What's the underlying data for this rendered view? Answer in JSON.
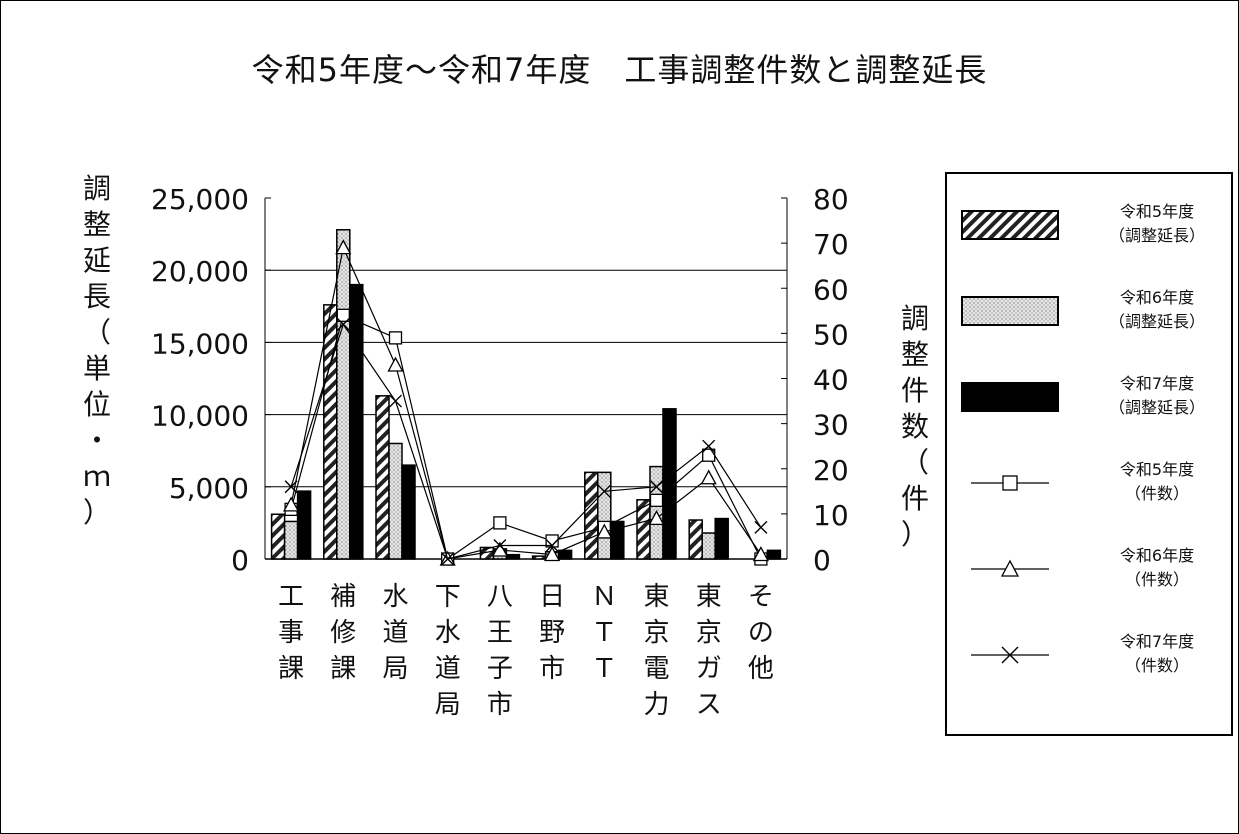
{
  "chart_data": {
    "type": "bar",
    "title": "令和5年度～令和7年度　工事調整件数と調整延長",
    "ylabel_left": "調整延長（単位・ｍ）",
    "ylabel_right": "調整件数（件）",
    "categories": [
      "工事課",
      "補修課",
      "水道局",
      "下水道局",
      "八王子市",
      "日野市",
      "ＮＴＴ",
      "東京電力",
      "東京ガス",
      "その他"
    ],
    "ylim_left": [
      0,
      25000
    ],
    "ylim_right": [
      0,
      80
    ],
    "left_ticks": [
      "25,000",
      "20,000",
      "15,000",
      "10,000",
      "5,000",
      "0"
    ],
    "right_ticks": [
      "80",
      "70",
      "60",
      "50",
      "40",
      "30",
      "20",
      "10",
      "0"
    ],
    "grid": "horizontal",
    "legend_position": "right",
    "bar_series": [
      {
        "name": "令和5年度（調整延長）",
        "values": [
          3100,
          17600,
          11300,
          0,
          800,
          200,
          6000,
          4100,
          2700,
          0
        ]
      },
      {
        "name": "令和6年度（調整延長）",
        "values": [
          2600,
          22800,
          8000,
          0,
          700,
          500,
          6000,
          6400,
          1800,
          0
        ]
      },
      {
        "name": "令和7年度（調整延長）",
        "values": [
          4700,
          19000,
          6500,
          0,
          300,
          600,
          2600,
          10400,
          2800,
          600
        ]
      }
    ],
    "line_series": [
      {
        "name": "令和5年度（件数）",
        "marker": "square",
        "values": [
          11,
          54,
          49,
          0,
          8,
          4,
          7,
          13,
          23,
          0
        ]
      },
      {
        "name": "令和6年度（件数）",
        "marker": "triangle",
        "values": [
          12,
          69,
          43,
          0,
          2,
          1,
          6,
          9,
          18,
          1
        ]
      },
      {
        "name": "令和7年度（件数）",
        "marker": "x",
        "values": [
          16,
          52,
          35,
          0,
          3,
          3,
          15,
          16,
          25,
          7
        ]
      }
    ],
    "colors": {
      "bar_r5": "#222222",
      "bar_r6": "#d8d8d8",
      "bar_r7": "#000000",
      "lines": "#000000",
      "grid": "#000000"
    }
  },
  "legend": [
    {
      "line1": "令和5年度",
      "line2": "（調整延長）",
      "icon": "hatched-bar"
    },
    {
      "line1": "令和6年度",
      "line2": "（調整延長）",
      "icon": "dotted-bar"
    },
    {
      "line1": "令和7年度",
      "line2": "（調整延長）",
      "icon": "solid-bar"
    },
    {
      "line1": "令和5年度",
      "line2": "（件数）",
      "icon": "square-marker-line"
    },
    {
      "line1": "令和6年度",
      "line2": "（件数）",
      "icon": "triangle-marker-line"
    },
    {
      "line1": "令和7年度",
      "line2": "（件数）",
      "icon": "x-marker-line"
    }
  ]
}
